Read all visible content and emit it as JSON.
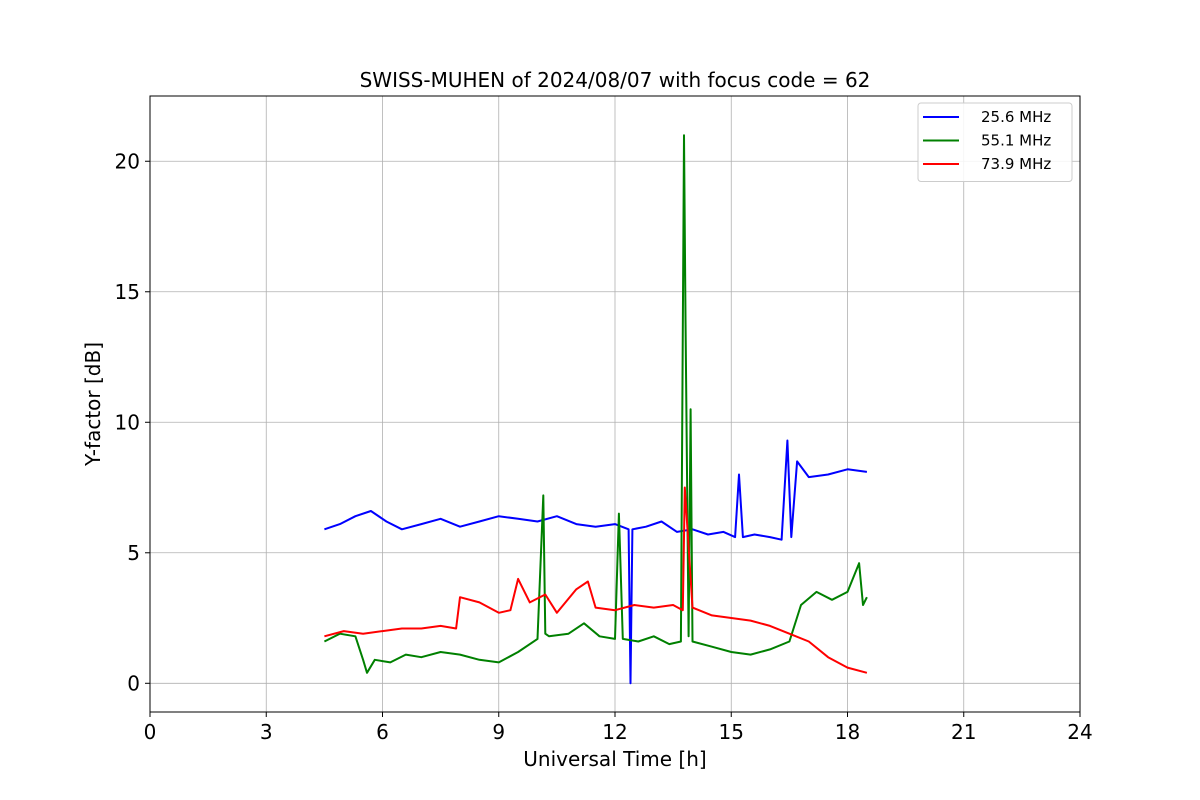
{
  "chart_data": {
    "type": "line",
    "title": "SWISS-MUHEN of 2024/08/07 with focus code = 62",
    "xlabel": "Universal Time [h]",
    "ylabel": "Y-factor [dB]",
    "xlim": [
      0,
      24
    ],
    "ylim": [
      -1.1,
      22.5
    ],
    "xticks": [
      0,
      3,
      6,
      9,
      12,
      15,
      18,
      21,
      24
    ],
    "yticks": [
      0,
      5,
      10,
      15,
      20
    ],
    "grid": true,
    "legend_position": "top-right",
    "series": [
      {
        "name": "25.6 MHz",
        "color": "#0000ff",
        "x": [
          4.5,
          4.9,
          5.3,
          5.7,
          6.1,
          6.5,
          7.0,
          7.5,
          8.0,
          8.5,
          9.0,
          9.5,
          10.0,
          10.5,
          11.0,
          11.5,
          12.0,
          12.35,
          12.4,
          12.45,
          12.8,
          13.2,
          13.6,
          14.0,
          14.4,
          14.8,
          15.1,
          15.2,
          15.3,
          15.6,
          16.0,
          16.3,
          16.45,
          16.55,
          16.7,
          17.0,
          17.5,
          18.0,
          18.5
        ],
        "y": [
          5.9,
          6.1,
          6.4,
          6.6,
          6.2,
          5.9,
          6.1,
          6.3,
          6.0,
          6.2,
          6.4,
          6.3,
          6.2,
          6.4,
          6.1,
          6.0,
          6.1,
          5.9,
          0.0,
          5.9,
          6.0,
          6.2,
          5.8,
          5.9,
          5.7,
          5.8,
          5.6,
          8.0,
          5.6,
          5.7,
          5.6,
          5.5,
          9.3,
          5.6,
          8.5,
          7.9,
          8.0,
          8.2,
          8.1
        ]
      },
      {
        "name": "55.1 MHz",
        "color": "#008000",
        "x": [
          4.5,
          4.9,
          5.3,
          5.5,
          5.6,
          5.8,
          6.2,
          6.6,
          7.0,
          7.5,
          8.0,
          8.5,
          9.0,
          9.5,
          10.0,
          10.15,
          10.2,
          10.3,
          10.8,
          11.2,
          11.6,
          12.0,
          12.1,
          12.2,
          12.6,
          13.0,
          13.4,
          13.7,
          13.78,
          13.82,
          13.9,
          13.95,
          14.0,
          14.5,
          15.0,
          15.5,
          16.0,
          16.5,
          16.8,
          17.2,
          17.6,
          18.0,
          18.3,
          18.4,
          18.5
        ],
        "y": [
          1.6,
          1.9,
          1.8,
          0.9,
          0.4,
          0.9,
          0.8,
          1.1,
          1.0,
          1.2,
          1.1,
          0.9,
          0.8,
          1.2,
          1.7,
          7.2,
          1.9,
          1.8,
          1.9,
          2.3,
          1.8,
          1.7,
          6.5,
          1.7,
          1.6,
          1.8,
          1.5,
          1.6,
          21.0,
          14.0,
          1.8,
          10.5,
          1.6,
          1.4,
          1.2,
          1.1,
          1.3,
          1.6,
          3.0,
          3.5,
          3.2,
          3.5,
          4.6,
          3.0,
          3.3
        ]
      },
      {
        "name": "73.9 MHz",
        "color": "#ff0000",
        "x": [
          4.5,
          5.0,
          5.5,
          6.0,
          6.5,
          7.0,
          7.5,
          7.9,
          8.0,
          8.5,
          9.0,
          9.3,
          9.5,
          9.8,
          10.2,
          10.5,
          11.0,
          11.3,
          11.5,
          12.0,
          12.5,
          13.0,
          13.5,
          13.75,
          13.8,
          14.0,
          14.5,
          15.0,
          15.5,
          16.0,
          16.5,
          17.0,
          17.5,
          18.0,
          18.5
        ],
        "y": [
          1.8,
          2.0,
          1.9,
          2.0,
          2.1,
          2.1,
          2.2,
          2.1,
          3.3,
          3.1,
          2.7,
          2.8,
          4.0,
          3.1,
          3.4,
          2.7,
          3.6,
          3.9,
          2.9,
          2.8,
          3.0,
          2.9,
          3.0,
          2.8,
          7.5,
          2.9,
          2.6,
          2.5,
          2.4,
          2.2,
          1.9,
          1.6,
          1.0,
          0.6,
          0.4
        ]
      }
    ]
  }
}
